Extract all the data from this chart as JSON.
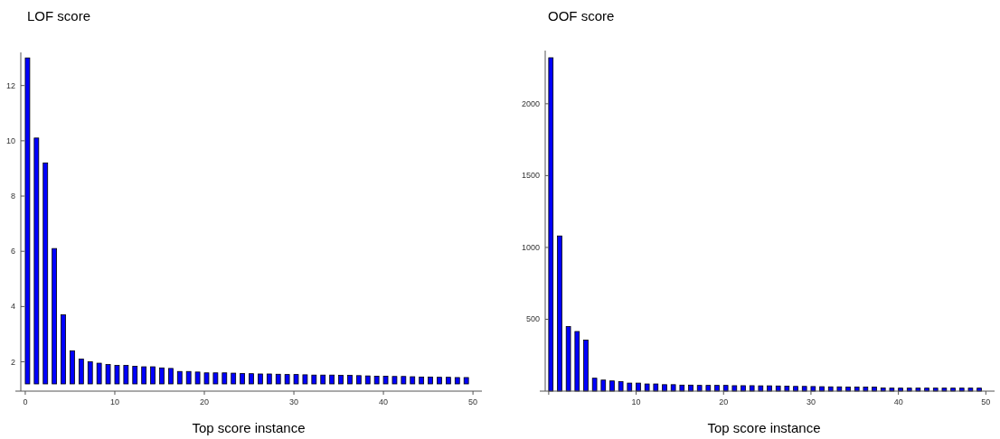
{
  "chart_data": [
    {
      "type": "bar",
      "title": "LOF score",
      "xlabel": "Top score instance",
      "color": "#0000ff",
      "x": [
        0,
        1,
        2,
        3,
        4,
        5,
        6,
        7,
        8,
        9,
        10,
        11,
        12,
        13,
        14,
        15,
        16,
        17,
        18,
        19,
        20,
        21,
        22,
        23,
        24,
        25,
        26,
        27,
        28,
        29,
        30,
        31,
        32,
        33,
        34,
        35,
        36,
        37,
        38,
        39,
        40,
        41,
        42,
        43,
        44,
        45,
        46,
        47,
        48,
        49
      ],
      "values": [
        13.0,
        10.1,
        9.2,
        6.1,
        3.7,
        2.4,
        2.1,
        2.0,
        1.95,
        1.9,
        1.87,
        1.87,
        1.84,
        1.82,
        1.82,
        1.78,
        1.76,
        1.65,
        1.65,
        1.63,
        1.6,
        1.6,
        1.6,
        1.59,
        1.58,
        1.57,
        1.56,
        1.56,
        1.55,
        1.54,
        1.54,
        1.53,
        1.52,
        1.52,
        1.52,
        1.51,
        1.51,
        1.5,
        1.49,
        1.48,
        1.48,
        1.47,
        1.47,
        1.46,
        1.45,
        1.45,
        1.44,
        1.44,
        1.43,
        1.43
      ],
      "xlim": [
        -0.5,
        51
      ],
      "ylim": [
        1.2,
        13.2
      ],
      "xticks": [
        0,
        10,
        20,
        30,
        40,
        50
      ],
      "yticks": [
        2,
        4,
        6,
        8,
        10,
        12
      ],
      "grid": false
    },
    {
      "type": "bar",
      "title": "OOF score",
      "xlabel": "Top score instance",
      "color": "#0000ff",
      "x": [
        0,
        1,
        2,
        3,
        4,
        5,
        6,
        7,
        8,
        9,
        10,
        11,
        12,
        13,
        14,
        15,
        16,
        17,
        18,
        19,
        20,
        21,
        22,
        23,
        24,
        25,
        26,
        27,
        28,
        29,
        30,
        31,
        32,
        33,
        34,
        35,
        36,
        37,
        38,
        39,
        40,
        41,
        42,
        43,
        44,
        45,
        46,
        47,
        48,
        49
      ],
      "values": [
        2320,
        1080,
        450,
        415,
        355,
        90,
        77,
        71,
        67,
        56,
        56,
        50,
        50,
        45,
        45,
        42,
        42,
        40,
        40,
        40,
        40,
        38,
        38,
        38,
        37,
        37,
        36,
        35,
        33,
        33,
        32,
        31,
        30,
        30,
        29,
        29,
        28,
        28,
        22,
        21,
        21,
        21,
        21,
        21,
        21,
        21,
        21,
        21,
        21,
        21
      ],
      "xlim": [
        -0.4,
        51
      ],
      "ylim": [
        0,
        2370
      ],
      "xticks": [
        {
          "value": 0,
          "label": null
        },
        10,
        20,
        30,
        40,
        50
      ],
      "yticks": [
        500,
        1000,
        1500,
        2000
      ],
      "grid": false
    }
  ]
}
